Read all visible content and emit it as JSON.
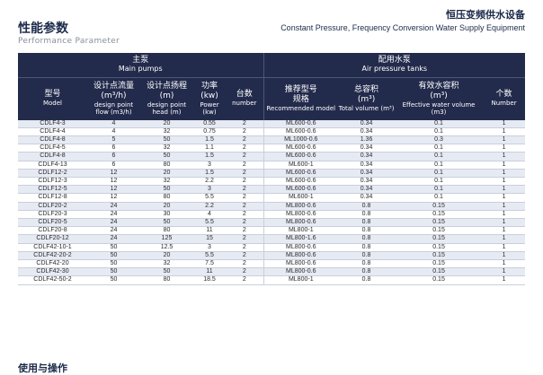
{
  "header": {
    "title_zh": "性能参数",
    "title_en": "Performance Parameter",
    "product_zh": "恒压变频供水设备",
    "product_en": "Constant Pressure, Frequency Conversion Water Supply Equipment"
  },
  "table": {
    "group_main_zh": "主泵",
    "group_main_en": "Main pumps",
    "group_tank_zh": "配用水泵",
    "group_tank_en": "Air pressure tanks",
    "columns": [
      {
        "zh": "型号",
        "unit": "",
        "en": "Model"
      },
      {
        "zh": "设计点流量",
        "unit": "(m³/h)",
        "en": "design point flow (m3/h)"
      },
      {
        "zh": "设计点扬程",
        "unit": "(m)",
        "en": "design point head (m)"
      },
      {
        "zh": "功率",
        "unit": "(kw)",
        "en": "Power (kw)"
      },
      {
        "zh": "台数",
        "unit": "",
        "en": "number"
      },
      {
        "zh": "推荐型号",
        "unit": "规格",
        "en": "Recommended model"
      },
      {
        "zh": "总容积",
        "unit": "(m³)",
        "en": "Total volume (m³)"
      },
      {
        "zh": "有效水容积",
        "unit": "(m³)",
        "en": "Effective water volume (m3)"
      },
      {
        "zh": "个数",
        "unit": "",
        "en": "Number"
      }
    ],
    "rows": [
      [
        "CDLF4-3",
        "4",
        "20",
        "0.55",
        "2",
        "ML600-0.6",
        "0.34",
        "0.1",
        "1"
      ],
      [
        "CDLF4-4",
        "4",
        "32",
        "0.75",
        "2",
        "ML600-0.6",
        "0.34",
        "0.1",
        "1"
      ],
      [
        "CDLF4-8",
        "5",
        "50",
        "1.5",
        "2",
        "ML1000-0.6",
        "1.36",
        "0.3",
        "1"
      ],
      [
        "CDLF4-5",
        "6",
        "32",
        "1.1",
        "2",
        "ML600-0.6",
        "0.34",
        "0.1",
        "1"
      ],
      [
        "CDLF4-8",
        "6",
        "50",
        "1.5",
        "2",
        "ML600-0.6",
        "0.34",
        "0.1",
        "1"
      ],
      [
        "CDLF4-13",
        "6",
        "80",
        "3",
        "2",
        "ML600-1",
        "0.34",
        "0.1",
        "1"
      ],
      [
        "CDLF12-2",
        "12",
        "20",
        "1.5",
        "2",
        "ML600-0.6",
        "0.34",
        "0.1",
        "1"
      ],
      [
        "CDLF12-3",
        "12",
        "32",
        "2.2",
        "2",
        "ML600-0.6",
        "0.34",
        "0.1",
        "1"
      ],
      [
        "CDLF12-5",
        "12",
        "50",
        "3",
        "2",
        "ML600-0.6",
        "0.34",
        "0.1",
        "1"
      ],
      [
        "CDLF12-8",
        "12",
        "80",
        "5.5",
        "2",
        "ML600-1",
        "0.34",
        "0.1",
        "1"
      ],
      [
        "CDLF20-2",
        "24",
        "20",
        "2.2",
        "2",
        "ML800-0.6",
        "0.8",
        "0.15",
        "1"
      ],
      [
        "CDLF20-3",
        "24",
        "30",
        "4",
        "2",
        "ML800-0.6",
        "0.8",
        "0.15",
        "1"
      ],
      [
        "CDLF20-5",
        "24",
        "50",
        "5.5",
        "2",
        "ML800-0.6",
        "0.8",
        "0.15",
        "1"
      ],
      [
        "CDLF20-8",
        "24",
        "80",
        "11",
        "2",
        "ML800-1",
        "0.8",
        "0.15",
        "1"
      ],
      [
        "CDLF20-12",
        "24",
        "125",
        "15",
        "2",
        "ML800-1.6",
        "0.8",
        "0.15",
        "1"
      ],
      [
        "CDLF42-10-1",
        "50",
        "12.5",
        "3",
        "2",
        "ML800-0.6",
        "0.8",
        "0.15",
        "1"
      ],
      [
        "CDLF42-20-2",
        "50",
        "20",
        "5.5",
        "2",
        "ML800-0.6",
        "0.8",
        "0.15",
        "1"
      ],
      [
        "CDLF42-20",
        "50",
        "32",
        "7.5",
        "2",
        "ML800-0.6",
        "0.8",
        "0.15",
        "1"
      ],
      [
        "CDLF42-30",
        "50",
        "50",
        "11",
        "2",
        "ML800-0.6",
        "0.8",
        "0.15",
        "1"
      ],
      [
        "CDLF42-50-2",
        "50",
        "80",
        "18.5",
        "2",
        "ML800-1",
        "0.8",
        "0.15",
        "1"
      ]
    ]
  },
  "footer": {
    "next_section_zh": "使用与操作"
  }
}
